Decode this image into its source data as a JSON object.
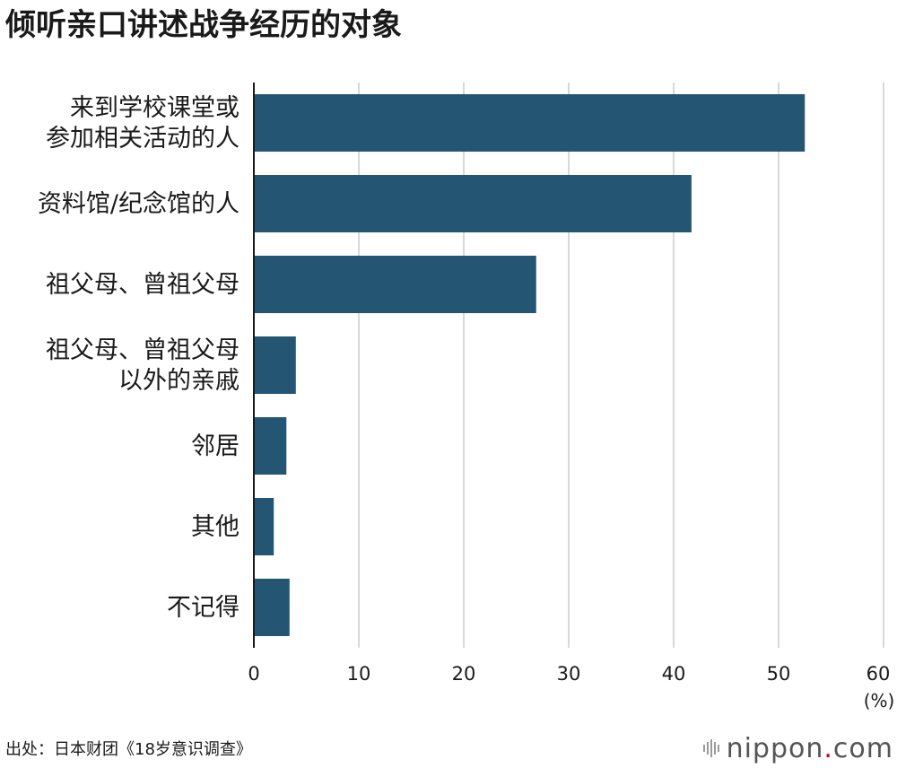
{
  "brand": {
    "name": "nippon",
    "dot": ".",
    "tld": "com"
  },
  "source": "出处：日本财团《18岁意识调查》",
  "chart_data": {
    "type": "bar",
    "orientation": "horizontal",
    "title": "倾听亲口讲述战争经历的对象",
    "unit_label": "(%)",
    "categories": [
      [
        "来到学校课堂或",
        "参加相关活动的人"
      ],
      [
        "资料馆/纪念馆的人"
      ],
      [
        "祖父母、曾祖父母"
      ],
      [
        "祖父母、曾祖父母",
        "以外的亲戚"
      ],
      [
        "邻居"
      ],
      [
        "其他"
      ],
      [
        "不记得"
      ]
    ],
    "values": [
      52.5,
      41.7,
      26.9,
      4.0,
      3.1,
      1.9,
      3.4
    ],
    "xlim": [
      0,
      60
    ],
    "xticks": [
      0,
      10,
      20,
      30,
      40,
      50,
      60
    ],
    "grid": true,
    "bar_color": "#245673",
    "grid_color": "#cccccc"
  }
}
